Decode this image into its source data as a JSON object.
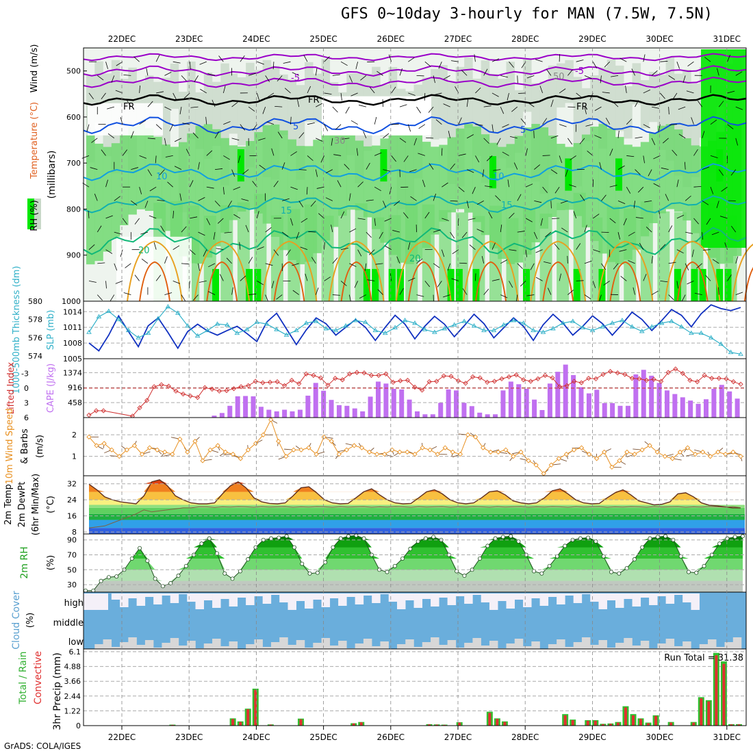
{
  "title": "GFS 0~10day 3-hourly for MAN (7.5W, 7.5N)",
  "credit": "GrADS: COLA/IGES",
  "dates": [
    "22DEC",
    "23DEC",
    "24DEC",
    "25DEC",
    "26DEC",
    "27DEC",
    "28DEC",
    "29DEC",
    "30DEC",
    "31DEC"
  ],
  "colors": {
    "rh_green": "#00e800",
    "rh_mid": "#70d870",
    "rh_light": "#c8d8c8",
    "t_minus5": "#9a00c8",
    "t_fr": "#000000",
    "t_5": "#1050e0",
    "t_10": "#10a0e0",
    "t_15": "#10b0b0",
    "t_20": "#10b878",
    "t_25": "#e8a020",
    "t_30": "#e06010",
    "slp": "#1030c0",
    "thick": "#30b0c8",
    "li": "#d03030",
    "cape": "#c070f0",
    "wind": "#e89020",
    "cloud_blue": "#6aaedc",
    "cloud_white": "#f4f0f8",
    "cloud_grey": "#d8d8d8",
    "precip_green": "#30c030",
    "precip_red": "#e03030"
  },
  "chart_data": [
    {
      "type": "heatmap",
      "panel": "rh_wind_temperature_profile",
      "ylabel": "(millibars)",
      "side_labels": [
        "Wind (m/s)",
        "Temperature (°C)",
        "RH (%)"
      ],
      "yticks": [
        "500",
        "600",
        "700",
        "800",
        "900",
        "1000"
      ],
      "ylim": [
        450,
        1000
      ],
      "contour_labels": [
        "-5",
        "-5",
        "FR",
        "FR",
        "FR",
        "5",
        "5",
        "10",
        "10",
        "15",
        "15",
        "20",
        "20",
        "50",
        "30"
      ],
      "isotherms_mb": {
        "-5": 500,
        "FR": 563,
        "5": 618,
        "10": 720,
        "15": 790,
        "20": 870
      }
    },
    {
      "type": "line",
      "panel": "slp_thickness",
      "side_labels": [
        "1000-500mb Thickness (dm)",
        "SLP (mb)"
      ],
      "left_ticks": [
        "580",
        "578",
        "576",
        "574"
      ],
      "right_ticks": [
        "1014",
        "1011",
        "1008",
        "1005"
      ],
      "left_lim": [
        573.7,
        580
      ],
      "right_lim": [
        1005,
        1016
      ],
      "series": [
        {
          "name": "SLP (mb)",
          "axis": "right",
          "values": [
            1008,
            1006.5,
            1009.5,
            1013.2,
            1010.2,
            1007.3,
            1011.3,
            1012.8,
            1010,
            1007,
            1010.2,
            1011.6,
            1010.3,
            1009.5,
            1010.4,
            1011.2,
            1009.8,
            1008.3,
            1012,
            1013.7,
            1010.7,
            1007.7,
            1010.5,
            1012.8,
            1011.7,
            1009.5,
            1011,
            1012.5,
            1011,
            1008.5,
            1011,
            1013.3,
            1011.6,
            1008.8,
            1011.2,
            1013.1,
            1011.6,
            1009.2,
            1011.3,
            1013.5,
            1011.7,
            1009,
            1010.9,
            1012.8,
            1011.2,
            1008.5,
            1011.5,
            1013.5,
            1011.8,
            1009.5,
            1011.2,
            1013.2,
            1011.7,
            1009.5,
            1011.6,
            1013.9,
            1012.5,
            1010.4,
            1012.3,
            1014.4,
            1013.3,
            1011.1,
            1013.6,
            1015.3,
            1014.6,
            1014.2,
            1014.8
          ]
        },
        {
          "name": "1000-500mb Thickness (dm)",
          "axis": "left",
          "values": [
            576.6,
            578.3,
            578.9,
            578,
            576.8,
            576,
            576.5,
            578.1,
            579.4,
            578.7,
            577.3,
            576.2,
            576.8,
            577.5,
            577.4,
            576.5,
            576.9,
            577.7,
            577.5,
            576.9,
            576.3,
            576.8,
            577.6,
            577.8,
            577,
            576.8,
            577.3,
            577.9,
            577.7,
            576.8,
            576.5,
            577.1,
            577.9,
            577.6,
            576.9,
            576.6,
            577,
            577.4,
            577.8,
            577.3,
            576.8,
            576.8,
            577.4,
            577.9,
            577.6,
            576.8,
            576.6,
            577,
            577.6,
            577.8,
            577.1,
            576.8,
            577.2,
            577.6,
            577.9,
            577.2,
            576.7,
            577.2,
            577.6,
            577.8,
            577.2,
            576.5,
            576.5,
            576,
            575.3,
            574.4,
            574.2
          ]
        }
      ]
    },
    {
      "type": "bar",
      "panel": "cape_lifted_index",
      "side_labels": [
        "Lifted Index",
        "CAPE (J/kg)"
      ],
      "li_ticks": [
        "-3",
        "0",
        "3",
        "6"
      ],
      "cape_ticks": [
        "1374",
        "916",
        "458"
      ],
      "li_lim": [
        -6,
        6
      ],
      "cape_lim": [
        0,
        1800
      ],
      "series": [
        {
          "name": "CAPE (J/kg)",
          "values": [
            0,
            0,
            0,
            0,
            0,
            0,
            0,
            0,
            0,
            0,
            0,
            0,
            0,
            0,
            0,
            0,
            60,
            140,
            360,
            650,
            660,
            650,
            330,
            240,
            190,
            240,
            190,
            240,
            670,
            1060,
            820,
            540,
            380,
            360,
            280,
            190,
            640,
            1100,
            1040,
            880,
            860,
            550,
            190,
            100,
            100,
            450,
            860,
            830,
            450,
            350,
            150,
            100,
            100,
            830,
            1100,
            1020,
            880,
            550,
            230,
            1040,
            1400,
            1620,
            1300,
            930,
            740,
            850,
            440,
            440,
            360,
            360,
            1320,
            1460,
            1280,
            1060,
            830,
            720,
            620,
            520,
            420,
            560,
            880,
            1000,
            800,
            580
          ]
        },
        {
          "name": "Lifted Index",
          "values": [
            5.5,
            4.6,
            4.6,
            null,
            null,
            null,
            5.7,
            4,
            2.5,
            -0.3,
            -0.7,
            -0.4,
            0.6,
            1.2,
            1.6,
            1.9,
            -0.1,
            0.2,
            0.6,
            0.5,
            0.1,
            -0.3,
            -0.5,
            -1.4,
            -1.1,
            -1.2,
            -1.3,
            -0.5,
            -1.6,
            -0.9,
            -2.9,
            -2.6,
            -2.1,
            -0.6,
            -2,
            -1.7,
            -2.9,
            -3.2,
            -3.1,
            -2.6,
            -2.6,
            -2.9,
            -1.2,
            -1.5,
            -1.6,
            -0.2,
            0.4,
            -1.3,
            -1.4,
            -2.5,
            -2.4,
            -1.5,
            -1,
            -2.3,
            -2.1,
            -1.2,
            -1.4,
            -1.9,
            -2.3,
            -2.7,
            -1.7,
            -1.4,
            -1.9,
            -2.6,
            -2.1,
            -0.3,
            -0.5,
            -1.4,
            -1.1,
            -2,
            -1.9,
            -2.8,
            -3.4,
            -3.1,
            -2.8,
            -2,
            -1.9,
            -1.6,
            -1.8,
            -1.4,
            -3.2,
            -3.9,
            -3,
            -1.6,
            -1.3,
            -2.6,
            -2,
            -2,
            -1.9,
            -1.3,
            -0.8
          ]
        }
      ]
    },
    {
      "type": "line",
      "panel": "wind_10m",
      "side_labels": [
        "10m Wind Speed",
        "& Barbs",
        "(m/s)"
      ],
      "yticks": [
        "2",
        "1"
      ],
      "ylim": [
        0.1,
        2.8
      ],
      "series": [
        {
          "name": "10m Wind Speed",
          "values": [
            1.9,
            1.5,
            1.6,
            1.3,
            1,
            1.3,
            1.5,
            1.1,
            1.4,
            1.3,
            1.2,
            1.1,
            1.8,
            1.2,
            1.7,
            0.8,
            1.3,
            1.5,
            1.2,
            1.1,
            0.9,
            1.3,
            1.6,
            2,
            2.7,
            1.7,
            1,
            1.3,
            1.3,
            1.4,
            1.1,
            1.9,
            1.7,
            1.1,
            1.3,
            1.5,
            1.4,
            1.2,
            1.1,
            1.1,
            1.3,
            1.2,
            1.2,
            1.1,
            1.4,
            1.3,
            1.1,
            1.4,
            1.2,
            1.1,
            2,
            1.9,
            1.4,
            1.2,
            1.2,
            1.3,
            1,
            1.2,
            0.8,
            0.6,
            0.2,
            0.6,
            0.9,
            1.1,
            1.3,
            1.4,
            1.1,
            0.9,
            1.2,
            0.5,
            0.8,
            1.2,
            1.1,
            1.3,
            1.5,
            1.2,
            1,
            0.9,
            1.2,
            1.4,
            1.1,
            1.2,
            1,
            1.2,
            1.1,
            1.2,
            1
          ]
        }
      ]
    },
    {
      "type": "area",
      "panel": "temp_dewpoint_2m",
      "side_labels": [
        "2m Temp",
        "2m DewPt",
        "(6hr Min/Max)",
        "(°C)"
      ],
      "yticks": [
        "32",
        "24",
        "16",
        "8"
      ],
      "ylim": [
        7,
        36
      ],
      "series": [
        {
          "name": "2m Temp",
          "values": [
            31.8,
            29,
            25.5,
            24,
            23,
            22.5,
            22,
            26,
            33,
            34,
            31,
            26,
            24,
            22.5,
            22,
            22,
            22.5,
            27,
            31,
            33,
            30,
            25,
            23,
            22.2,
            22,
            22.5,
            26,
            30,
            30.5,
            27.5,
            24,
            22.5,
            22,
            22.2,
            25,
            28,
            29.5,
            26.5,
            24,
            22.5,
            22,
            22.2,
            25,
            28,
            29,
            27,
            24,
            22.5,
            22,
            22.5,
            25,
            28,
            28.5,
            26.5,
            23.5,
            22.5,
            22,
            22.5,
            25,
            28.5,
            29.5,
            27,
            24,
            22.5,
            22,
            22.2,
            25,
            27.5,
            29,
            26.5,
            23.5,
            22.5,
            21.5,
            21.8,
            23,
            27,
            27.5,
            25.5,
            22.5,
            21.3,
            21,
            20.5,
            20,
            20
          ]
        },
        {
          "name": "2m DewPt",
          "values": [
            10,
            10.5,
            11,
            12.5,
            14,
            15.5,
            17,
            19,
            18,
            18.5,
            19,
            19.5,
            20,
            20,
            20.5,
            20.5,
            20.2,
            20.5,
            20.4,
            20.6,
            20.5,
            20.3,
            20.6,
            20.4,
            20.5,
            20.6,
            20.3,
            20.5,
            20.4,
            20.6,
            20.5,
            20.3,
            20.6,
            20.4,
            20.5,
            20.6,
            20.3,
            20.5,
            20.4,
            20.6,
            20.5,
            20.3,
            20.6,
            20.4,
            20.5,
            20.6,
            20.3,
            20.5,
            20.4,
            20.6,
            20.5,
            20.3,
            20.6,
            20.4,
            20.5,
            20.6,
            20.3,
            20.5,
            20.4,
            20.6,
            20.5,
            20.3,
            20.6,
            20.4,
            20.5,
            20.6,
            20.3,
            20.5,
            20.4,
            20.6,
            20.5,
            20.3,
            20.6,
            20.4,
            20.5,
            20.6,
            20.3,
            20.5,
            20.4,
            20.6,
            20.5,
            20.3,
            20.6,
            20.1
          ]
        }
      ]
    },
    {
      "type": "area",
      "panel": "rh_2m",
      "side_labels": [
        "2m RH",
        "(%)"
      ],
      "yticks": [
        "90",
        "70",
        "50",
        "30"
      ],
      "ylim": [
        20,
        98
      ],
      "series": [
        {
          "name": "2m RH",
          "values": [
            22,
            22,
            35,
            40,
            41,
            50,
            65,
            79,
            62,
            38,
            28,
            32,
            42,
            55,
            70,
            85,
            92,
            72,
            45,
            38,
            48,
            64,
            80,
            90,
            92,
            93,
            95,
            80,
            58,
            45,
            46,
            60,
            80,
            92,
            95,
            96,
            92,
            70,
            50,
            47,
            55,
            65,
            78,
            88,
            92,
            94,
            90,
            70,
            48,
            42,
            50,
            65,
            82,
            92,
            94,
            95,
            88,
            70,
            48,
            45,
            55,
            68,
            82,
            90,
            92,
            93,
            88,
            68,
            47,
            45,
            52,
            64,
            80,
            92,
            94,
            95,
            90,
            68,
            47,
            46,
            55,
            70,
            85,
            92,
            94,
            95
          ]
        }
      ]
    },
    {
      "type": "bar",
      "panel": "cloud_cover",
      "side_labels": [
        "Cloud Cover",
        "(%)"
      ],
      "yticks": [
        "high",
        "middle",
        "low"
      ]
    },
    {
      "type": "bar",
      "panel": "precip_3hr",
      "side_labels": [
        "Total / Rain",
        "Convective",
        "3hr Precip (mm)"
      ],
      "yticks": [
        "6.1",
        "4.88",
        "3.66",
        "2.44",
        "1.22",
        "0"
      ],
      "ylim": [
        0,
        6.1
      ],
      "annotation": "Run Total = 31.38",
      "series": [
        {
          "name": "Total / Rain",
          "values": [
            0,
            0,
            0,
            0,
            0,
            0,
            0,
            0,
            0,
            0,
            0,
            0.08,
            0,
            0,
            0,
            0,
            0,
            0,
            0,
            0.6,
            0.35,
            1.4,
            3.05,
            0,
            0.1,
            0,
            0,
            0,
            0.58,
            0,
            0,
            0,
            0,
            0,
            0,
            0.2,
            0.3,
            0,
            0,
            0,
            0,
            0,
            0,
            0,
            0,
            0.12,
            0.1,
            0.08,
            0,
            0.28,
            0,
            0,
            0,
            1.15,
            0.6,
            0.35,
            0,
            0,
            0,
            0,
            0,
            0,
            0,
            0.95,
            0.5,
            0,
            0.45,
            0.45,
            0.15,
            0.18,
            0.3,
            1.6,
            0.95,
            0.6,
            0.25,
            0.85,
            0,
            0.3,
            0,
            0,
            0.3,
            2.35,
            2.1,
            6.0,
            5.3,
            0.12,
            0.12
          ]
        },
        {
          "name": "Convective",
          "values": [
            0,
            0,
            0,
            0,
            0,
            0,
            0,
            0,
            0,
            0,
            0,
            0.06,
            0,
            0,
            0,
            0,
            0,
            0,
            0,
            0.55,
            0.3,
            1.35,
            2.95,
            0,
            0.08,
            0,
            0,
            0,
            0.52,
            0,
            0,
            0,
            0,
            0,
            0,
            0.18,
            0.27,
            0,
            0,
            0,
            0,
            0,
            0,
            0,
            0,
            0.1,
            0.08,
            0.06,
            0,
            0.25,
            0,
            0,
            0,
            1.05,
            0.55,
            0.3,
            0,
            0,
            0,
            0,
            0,
            0,
            0,
            0.85,
            0.45,
            0,
            0.4,
            0.4,
            0.12,
            0.15,
            0.25,
            1.5,
            0.85,
            0.55,
            0.2,
            0.8,
            0,
            0.25,
            0,
            0,
            0.25,
            2.25,
            2,
            5.8,
            5.1,
            0.1,
            0.1
          ]
        }
      ]
    }
  ]
}
